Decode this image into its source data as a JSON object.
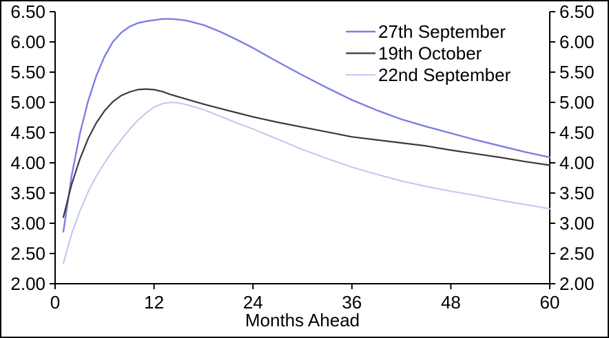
{
  "chart_data": {
    "type": "line",
    "title": "",
    "xlabel": "Months Ahead",
    "ylabel": "",
    "xlim": [
      0,
      60
    ],
    "ylim": [
      2.0,
      6.5
    ],
    "grid": false,
    "dual_y_axis": true,
    "legend_position": "top-right",
    "x_ticks": [
      {
        "value": 0,
        "label": "0"
      },
      {
        "value": 12,
        "label": "12"
      },
      {
        "value": 24,
        "label": "24"
      },
      {
        "value": 36,
        "label": "36"
      },
      {
        "value": 48,
        "label": "48"
      },
      {
        "value": 60,
        "label": "60"
      }
    ],
    "y_ticks": [
      {
        "value": 6.5,
        "label": "6.50"
      },
      {
        "value": 6.0,
        "label": "6.00"
      },
      {
        "value": 5.5,
        "label": "5.50"
      },
      {
        "value": 5.0,
        "label": "5.00"
      },
      {
        "value": 4.5,
        "label": "4.50"
      },
      {
        "value": 4.0,
        "label": "4.00"
      },
      {
        "value": 3.5,
        "label": "3.50"
      },
      {
        "value": 3.0,
        "label": "3.00"
      },
      {
        "value": 2.5,
        "label": "2.50"
      },
      {
        "value": 2.0,
        "label": "2.00"
      }
    ],
    "x": [
      1,
      2,
      3,
      4,
      5,
      6,
      7,
      8,
      9,
      10,
      11,
      12,
      13,
      14,
      15,
      16,
      18,
      20,
      22,
      24,
      27,
      30,
      33,
      36,
      39,
      42,
      45,
      48,
      51,
      54,
      57,
      60
    ],
    "series": [
      {
        "name": "27th September",
        "color": "#7b7ee3",
        "stroke_width": 2.4,
        "values": [
          2.86,
          3.78,
          4.48,
          5.02,
          5.44,
          5.76,
          6.0,
          6.15,
          6.25,
          6.31,
          6.34,
          6.36,
          6.38,
          6.38,
          6.37,
          6.35,
          6.28,
          6.17,
          6.04,
          5.9,
          5.67,
          5.45,
          5.24,
          5.04,
          4.87,
          4.72,
          4.6,
          4.49,
          4.38,
          4.28,
          4.18,
          4.09
        ]
      },
      {
        "name": "19th October",
        "color": "#3a3a3a",
        "stroke_width": 2.2,
        "values": [
          3.1,
          3.64,
          4.06,
          4.4,
          4.66,
          4.86,
          5.01,
          5.11,
          5.17,
          5.21,
          5.22,
          5.21,
          5.18,
          5.13,
          5.09,
          5.05,
          4.97,
          4.9,
          4.83,
          4.76,
          4.67,
          4.59,
          4.51,
          4.43,
          4.38,
          4.33,
          4.28,
          4.21,
          4.15,
          4.09,
          4.02,
          3.96
        ]
      },
      {
        "name": "22nd September",
        "color": "#c4c7f0",
        "stroke_width": 2.1,
        "values": [
          2.34,
          2.82,
          3.2,
          3.52,
          3.78,
          4.0,
          4.2,
          4.38,
          4.55,
          4.7,
          4.82,
          4.92,
          4.98,
          5.0,
          4.99,
          4.96,
          4.88,
          4.77,
          4.66,
          4.56,
          4.39,
          4.22,
          4.07,
          3.93,
          3.81,
          3.7,
          3.61,
          3.53,
          3.46,
          3.38,
          3.31,
          3.24
        ]
      }
    ],
    "axis_color": "#000000",
    "background_color": "#ffffff"
  }
}
